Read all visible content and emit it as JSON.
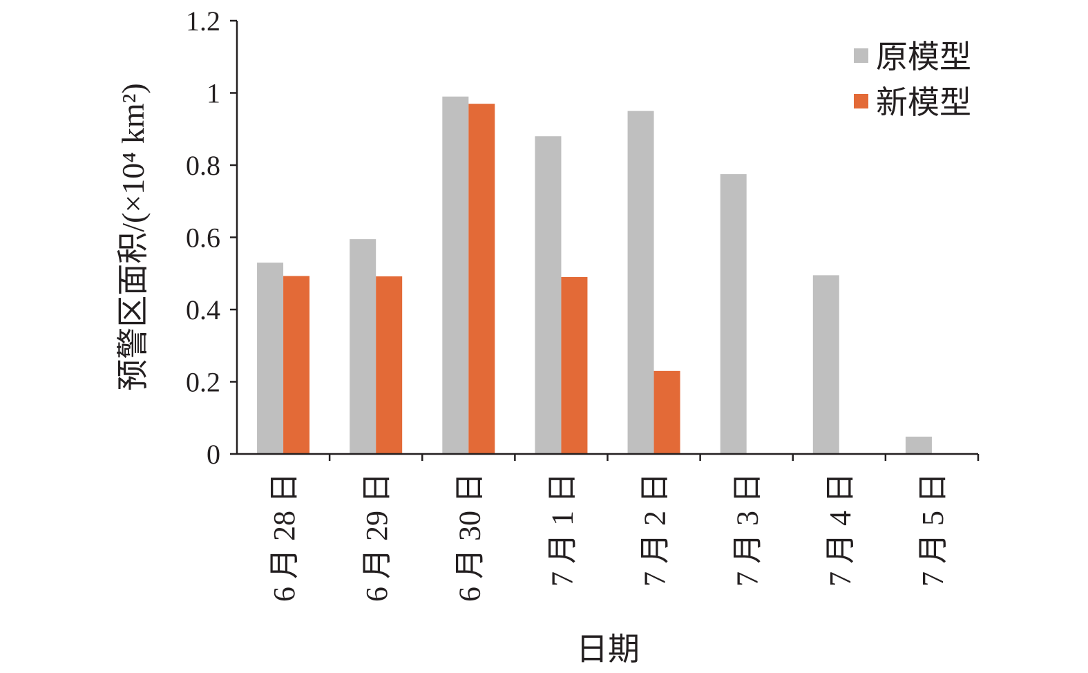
{
  "chart_data": {
    "type": "bar",
    "categories": [
      "6 月 28 日",
      "6 月 29 日",
      "6 月 30 日",
      "7 月 1 日",
      "7 月 2 日",
      "7 月 3 日",
      "7 月 4 日",
      "7 月 5 日"
    ],
    "series": [
      {
        "name": "原模型",
        "color": "#bfbfbf",
        "values": [
          0.53,
          0.595,
          0.99,
          0.88,
          0.95,
          0.775,
          0.495,
          0.048
        ]
      },
      {
        "name": "新模型",
        "color": "#e36a37",
        "values": [
          0.493,
          0.492,
          0.97,
          0.49,
          0.23,
          0,
          0,
          0
        ]
      }
    ],
    "xlabel": "日期",
    "ylabel": "预警区面积/(×10⁴ km²)",
    "ylim": [
      0,
      1.2
    ],
    "yticks": [
      "0",
      "0.2",
      "0.4",
      "0.6",
      "0.8",
      "1",
      "1.2"
    ],
    "grid": false,
    "legend_position": "top-right"
  }
}
